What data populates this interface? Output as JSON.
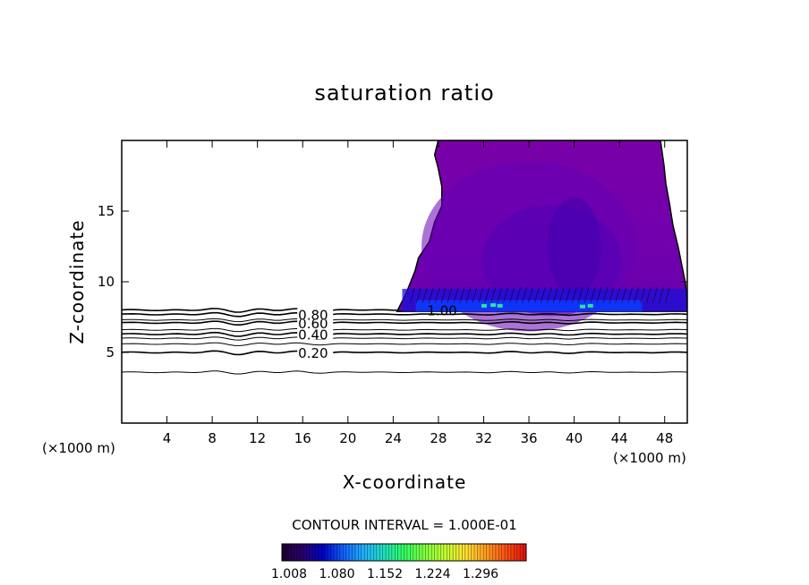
{
  "chart_data": {
    "type": "heatmap",
    "title": "saturation ratio",
    "xlabel": "X-coordinate",
    "ylabel": "Z-coordinate",
    "x_unit_left": "(×1000 m)",
    "x_unit_right": "(×1000 m)",
    "xlim": [
      0,
      50
    ],
    "ylim": [
      0,
      20
    ],
    "x_ticks": [
      4,
      8,
      12,
      16,
      20,
      24,
      28,
      32,
      36,
      40,
      44,
      48
    ],
    "x_tick_labels": [
      "4",
      "8",
      "12",
      "16",
      "20",
      "24",
      "28",
      "32",
      "36",
      "40",
      "44",
      "48"
    ],
    "y_ticks": [
      5,
      10,
      15
    ],
    "y_tick_labels": [
      "5",
      "10",
      "15"
    ],
    "contour_interval": "CONTOUR INTERVAL = 1.000E-01",
    "contour_levels": [
      {
        "value": 0.2,
        "label": "0.20",
        "z": 5.0
      },
      {
        "value": 0.4,
        "label": "0.40",
        "z": 6.3
      },
      {
        "value": 0.6,
        "label": "0.60",
        "z": 7.1
      },
      {
        "value": 0.8,
        "label": "0.80",
        "z": 7.7
      },
      {
        "value": 1.0,
        "label": "1.00",
        "z": 8.0
      }
    ],
    "unlabeled_contours_z": [
      3.6,
      5.6,
      6.0,
      6.6,
      7.3
    ],
    "supersaturated_region": {
      "x_start": 24.5,
      "x_end": 50,
      "z_bottom": 7.9,
      "z_top": 20,
      "fill_color": "#7a00a8"
    },
    "colorbar": {
      "tick_labels": [
        "1.008",
        "1.080",
        "1.152",
        "1.224",
        "1.296"
      ],
      "colors": [
        "#1a0030",
        "#2a006a",
        "#0000c8",
        "#1060ff",
        "#20b0ff",
        "#20e0c0",
        "#30ff60",
        "#80ff40",
        "#c0ff30",
        "#ffe030",
        "#ffa020",
        "#ff5010",
        "#e01010"
      ]
    }
  }
}
